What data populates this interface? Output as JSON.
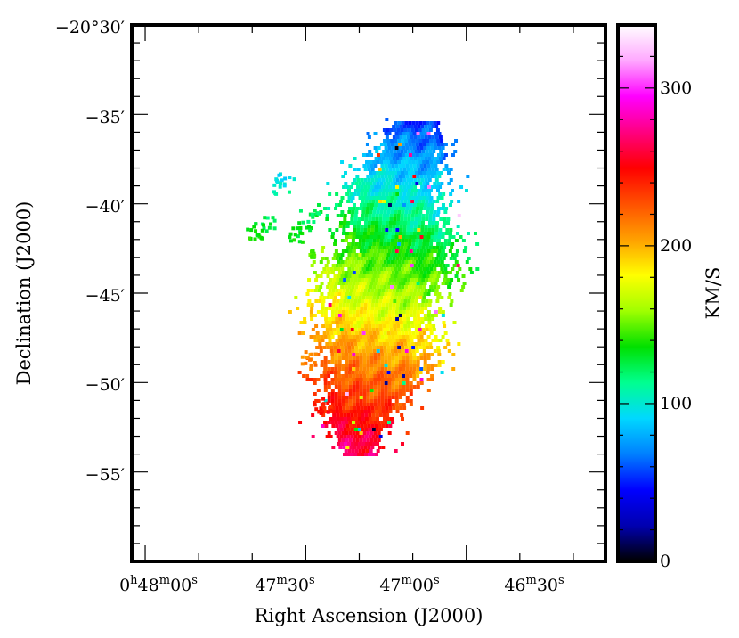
{
  "chart_data": {
    "type": "heatmap",
    "title": "",
    "xlabel": "Right Ascension (J2000)",
    "ylabel": "Declination (J2000)",
    "colorbar_label": "KM/S",
    "x_ticks": [
      {
        "pre": "0",
        "h": "h",
        "m_val": "48",
        "m": "m",
        "s_val": "00",
        "s": "s",
        "ra_seconds": 2880
      },
      {
        "pre": "",
        "h": "",
        "m_val": "47",
        "m": "m",
        "s_val": "30",
        "s": "s",
        "ra_seconds": 2850
      },
      {
        "pre": "",
        "h": "",
        "m_val": "47",
        "m": "m",
        "s_val": "00",
        "s": "s",
        "ra_seconds": 2820
      },
      {
        "pre": "",
        "h": "",
        "m_val": "46",
        "m": "m",
        "s_val": "30",
        "s": "s",
        "ra_seconds": 2790
      }
    ],
    "x_range_ra_seconds": [
      2882.5,
      2794.0
    ],
    "y_ticks": [
      {
        "label": "−20°30′",
        "arcmin": -30
      },
      {
        "label": "−35′",
        "arcmin": -35
      },
      {
        "label": "−40′",
        "arcmin": -40
      },
      {
        "label": "−45′",
        "arcmin": -45
      },
      {
        "label": "−50′",
        "arcmin": -50
      },
      {
        "label": "−55′",
        "arcmin": -55
      }
    ],
    "y_range_arcmin": [
      -30,
      -60
    ],
    "colorbar_ticks": [
      {
        "label": "0",
        "value": 0
      },
      {
        "label": "100",
        "value": 100
      },
      {
        "label": "200",
        "value": 200
      },
      {
        "label": "300",
        "value": 300
      }
    ],
    "colorbar_range": [
      0,
      340
    ],
    "colormap": [
      "#000000",
      "#0000b0",
      "#0000ff",
      "#0080ff",
      "#00d8ff",
      "#00ff90",
      "#00e000",
      "#a0ff00",
      "#ffff00",
      "#ffa000",
      "#ff5000",
      "#ff0000",
      "#ff0080",
      "#ff00ff",
      "#ffa8ff",
      "#ffffff"
    ]
  }
}
